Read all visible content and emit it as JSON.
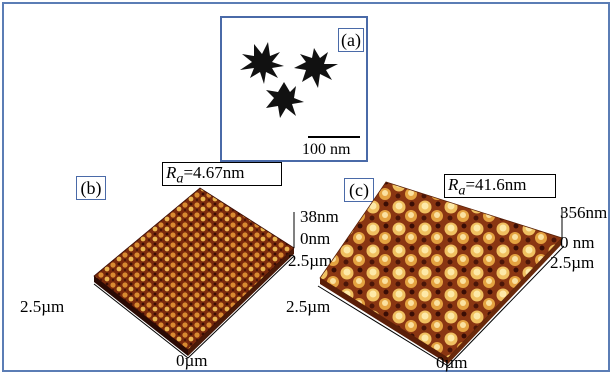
{
  "panels": {
    "a": {
      "letter": "(a)",
      "scale_bar_label": "100 nm"
    },
    "b": {
      "letter": "(b)",
      "ra_symbol": "R",
      "ra_subscript": "a",
      "ra_value": "=4.67nm",
      "z_max": "38nm",
      "z_min": "0nm",
      "axis_right_label": "2.5µm",
      "axis_left_label": "2.5µm",
      "origin_label": "0µm"
    },
    "c": {
      "letter": "(c)",
      "ra_symbol": "R",
      "ra_subscript": "a",
      "ra_value": "=41.6nm",
      "z_max": "356nm",
      "z_min": "0 nm",
      "axis_right_label": "2.5µm",
      "axis_left_label": "2.5µm",
      "origin_label": "0µm"
    }
  },
  "colors": {
    "frame_border": "#5b7db5",
    "afm_dark": "#3a0d05",
    "afm_mid": "#a0481a",
    "afm_light": "#f0c060"
  }
}
